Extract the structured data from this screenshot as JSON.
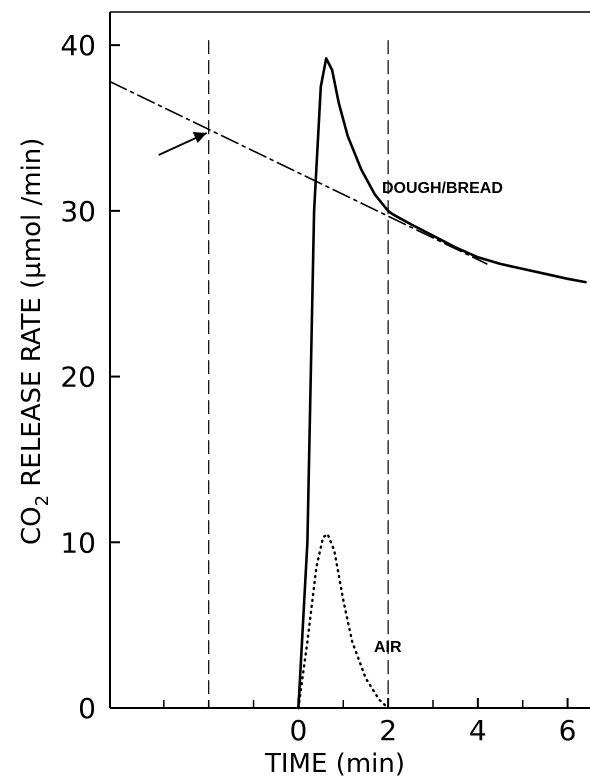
{
  "chart_data": {
    "type": "line",
    "title": "",
    "xlabel": "TIME (min)",
    "ylabel_main": "CO",
    "ylabel_sub": "2",
    "ylabel_rest": " RELEASE RATE (µmol /min)",
    "xlim": [
      -4.2,
      6.5
    ],
    "ylim": [
      0,
      42
    ],
    "x_ticks": [
      0,
      2,
      4,
      6
    ],
    "x_minor_ticks": [
      -3,
      -2,
      -1,
      1,
      3,
      5
    ],
    "y_ticks": [
      0,
      10,
      20,
      30,
      40
    ],
    "grid": false,
    "annotations": {
      "dough_bread": "DOUGH/BREAD",
      "air": "AIR"
    },
    "series": [
      {
        "style": "solid",
        "x": [
          0.0,
          0.2,
          0.35,
          0.5,
          0.62,
          0.75,
          0.9,
          1.1,
          1.4,
          1.7,
          2.0,
          2.1,
          2.5,
          3.0,
          3.5,
          4.0,
          4.5,
          5.0,
          5.5,
          6.0,
          6.4
        ],
        "y": [
          0.0,
          10.0,
          30.0,
          37.5,
          39.2,
          38.5,
          36.5,
          34.5,
          32.5,
          31.0,
          30.0,
          29.8,
          29.2,
          28.5,
          27.8,
          27.2,
          26.8,
          26.5,
          26.2,
          25.9,
          25.7
        ]
      },
      {
        "style": "dash-dot",
        "x": [
          -4.2,
          4.2
        ],
        "y": [
          37.8,
          26.8
        ]
      },
      {
        "style": "dotted",
        "x": [
          0.0,
          0.2,
          0.4,
          0.55,
          0.65,
          0.8,
          1.0,
          1.2,
          1.5,
          1.8,
          2.0
        ],
        "y": [
          0.0,
          4.0,
          8.5,
          10.3,
          10.5,
          9.5,
          6.5,
          4.0,
          1.8,
          0.5,
          0.0
        ]
      }
    ],
    "vertical_markers": [
      -2.0,
      2.0
    ]
  }
}
